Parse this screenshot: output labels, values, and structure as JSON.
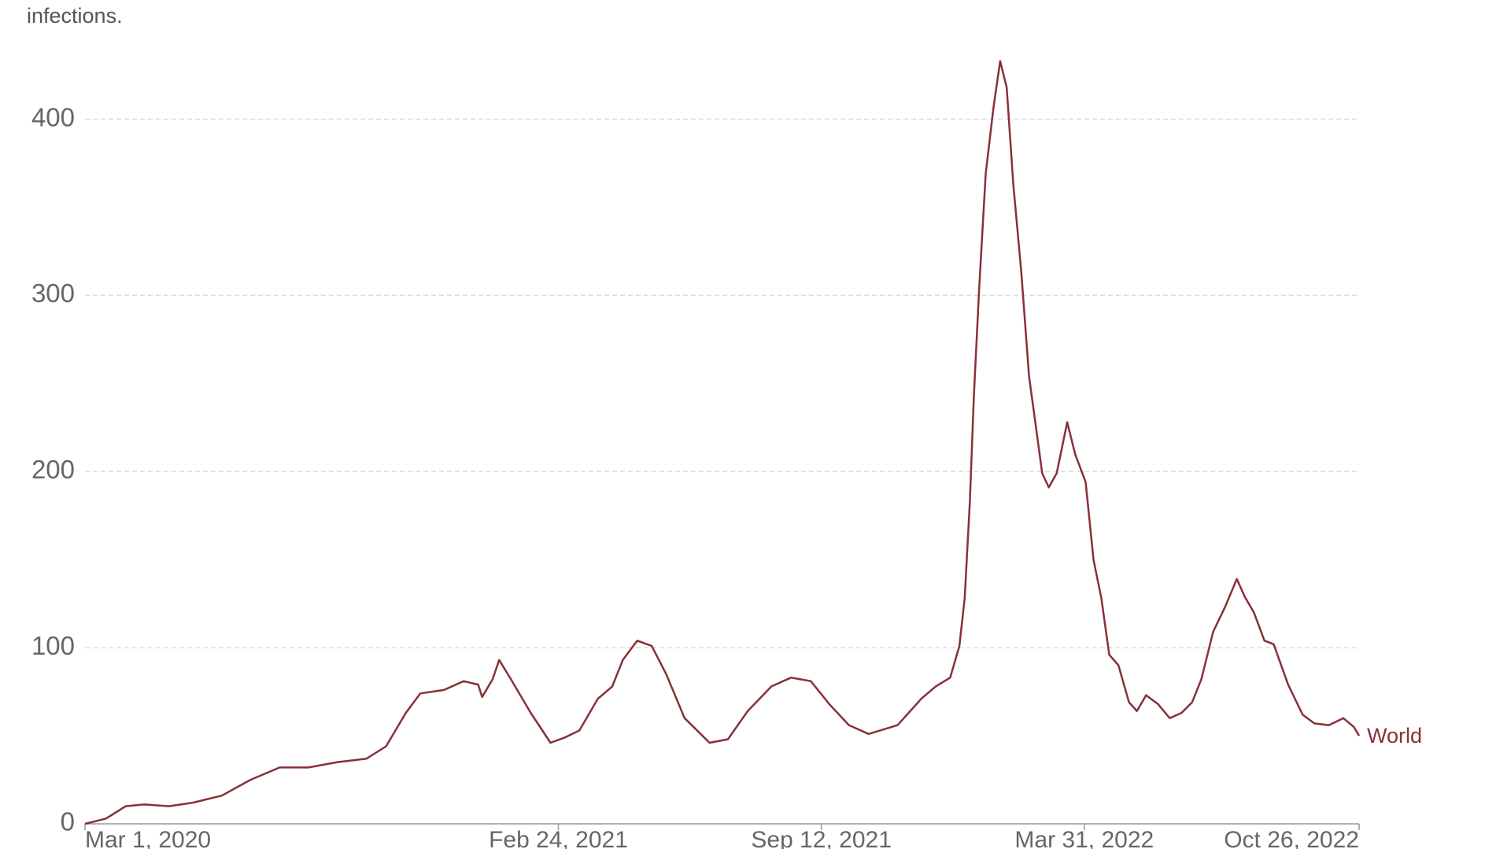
{
  "chart_data": {
    "type": "line",
    "subtitle": "infections.",
    "x": [
      "2020-03-01",
      "2020-03-17",
      "2020-04-01",
      "2020-04-15",
      "2020-05-04",
      "2020-05-22",
      "2020-06-13",
      "2020-07-05",
      "2020-07-27",
      "2020-08-18",
      "2020-09-09",
      "2020-10-01",
      "2020-10-16",
      "2020-10-31",
      "2020-11-11",
      "2020-11-29",
      "2020-12-14",
      "2020-12-25",
      "2020-12-28",
      "2021-01-05",
      "2021-01-10",
      "2021-01-19",
      "2021-02-03",
      "2021-02-18",
      "2021-03-01",
      "2021-03-12",
      "2021-03-26",
      "2021-04-06",
      "2021-04-14",
      "2021-04-25",
      "2021-05-06",
      "2021-05-17",
      "2021-05-31",
      "2021-06-19",
      "2021-07-03",
      "2021-07-18",
      "2021-08-05",
      "2021-08-20",
      "2021-09-04",
      "2021-09-18",
      "2021-10-03",
      "2021-10-18",
      "2021-11-09",
      "2021-11-27",
      "2021-12-08",
      "2021-12-19",
      "2021-12-26",
      "2021-12-30",
      "2022-01-03",
      "2022-01-06",
      "2022-01-10",
      "2022-01-15",
      "2022-01-21",
      "2022-01-26",
      "2022-01-31",
      "2022-02-05",
      "2022-02-11",
      "2022-02-17",
      "2022-02-21",
      "2022-02-27",
      "2022-03-04",
      "2022-03-10",
      "2022-03-18",
      "2022-03-24",
      "2022-04-01",
      "2022-04-07",
      "2022-04-13",
      "2022-04-19",
      "2022-04-26",
      "2022-05-04",
      "2022-05-10",
      "2022-05-17",
      "2022-05-26",
      "2022-06-04",
      "2022-06-13",
      "2022-06-21",
      "2022-06-28",
      "2022-07-07",
      "2022-07-16",
      "2022-07-25",
      "2022-07-31",
      "2022-08-07",
      "2022-08-15",
      "2022-08-22",
      "2022-09-02",
      "2022-09-13",
      "2022-09-22",
      "2022-10-03",
      "2022-10-14",
      "2022-10-22",
      "2022-10-26"
    ],
    "series": [
      {
        "name": "World",
        "color": "#883039",
        "values": [
          0,
          3,
          10,
          11,
          10,
          12,
          16,
          25,
          32,
          32,
          35,
          37,
          44,
          63,
          74,
          76,
          81,
          79,
          72,
          82,
          93,
          82,
          63,
          46,
          49,
          53,
          71,
          78,
          93,
          104,
          101,
          85,
          60,
          46,
          48,
          64,
          78,
          83,
          81,
          68,
          56,
          51,
          56,
          71,
          78,
          83,
          101,
          128,
          183,
          243,
          303,
          369,
          407,
          433,
          418,
          363,
          314,
          254,
          232,
          199,
          191,
          199,
          228,
          210,
          194,
          150,
          128,
          96,
          90,
          69,
          64,
          73,
          68,
          60,
          63,
          69,
          82,
          109,
          123,
          139,
          129,
          120,
          104,
          102,
          79,
          62,
          57,
          56,
          60,
          55,
          50
        ]
      }
    ],
    "xlim": [
      "2020-03-01",
      "2022-10-26"
    ],
    "xticks": [
      {
        "value": "2020-03-01",
        "label": "Mar 1, 2020"
      },
      {
        "value": "2021-02-24",
        "label": "Feb 24, 2021"
      },
      {
        "value": "2021-09-12",
        "label": "Sep 12, 2021"
      },
      {
        "value": "2022-03-31",
        "label": "Mar 31, 2022"
      },
      {
        "value": "2022-10-26",
        "label": "Oct 26, 2022"
      }
    ],
    "ylim": [
      0,
      440
    ],
    "yticks": [
      0,
      100,
      200,
      300,
      400
    ],
    "grid": true
  }
}
